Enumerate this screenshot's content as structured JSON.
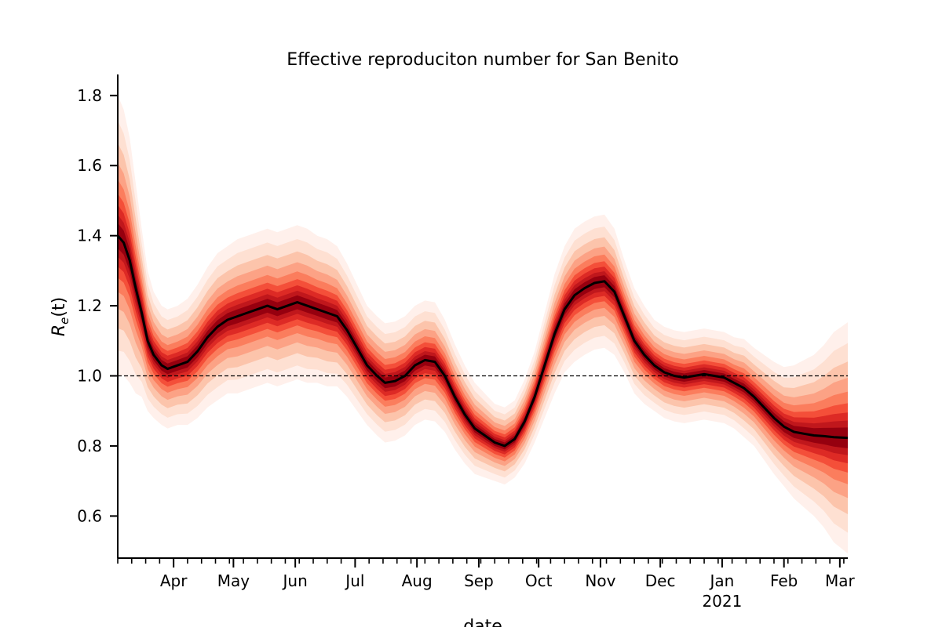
{
  "chart_data": {
    "type": "line",
    "title": "Effective reproduciton number for San Benito",
    "xlabel": "date",
    "ylabel_base": "R",
    "ylabel_sub": "e",
    "ylabel_arg": "(t)",
    "ylim": [
      0.48,
      1.86
    ],
    "xlim": [
      "2020-03-04",
      "2021-03-05"
    ],
    "y_ticks": [
      0.6,
      0.8,
      1.0,
      1.2,
      1.4,
      1.6,
      1.8
    ],
    "y_tick_labels": [
      "0.6",
      "0.8",
      "1.0",
      "1.2",
      "1.4",
      "1.6",
      "1.8"
    ],
    "x_major_ticks": [
      {
        "date": "2020-04-01",
        "label": "Apr",
        "label2": ""
      },
      {
        "date": "2020-05-01",
        "label": "May",
        "label2": ""
      },
      {
        "date": "2020-06-01",
        "label": "Jun",
        "label2": ""
      },
      {
        "date": "2020-07-01",
        "label": "Jul",
        "label2": ""
      },
      {
        "date": "2020-08-01",
        "label": "Aug",
        "label2": ""
      },
      {
        "date": "2020-09-01",
        "label": "Sep",
        "label2": ""
      },
      {
        "date": "2020-10-01",
        "label": "Oct",
        "label2": ""
      },
      {
        "date": "2020-11-01",
        "label": "Nov",
        "label2": ""
      },
      {
        "date": "2020-12-01",
        "label": "Dec",
        "label2": ""
      },
      {
        "date": "2021-01-01",
        "label": "Jan",
        "label2": "2021"
      },
      {
        "date": "2021-02-01",
        "label": "Feb",
        "label2": ""
      },
      {
        "date": "2021-03-01",
        "label": "Mar",
        "label2": ""
      }
    ],
    "minor_tick_interval": "weekly",
    "reference_line": {
      "y": 1.0,
      "style": "dashed"
    },
    "series": [
      {
        "color": "#000000",
        "x": [
          "2020-03-04",
          "2020-03-07",
          "2020-03-10",
          "2020-03-13",
          "2020-03-16",
          "2020-03-19",
          "2020-03-22",
          "2020-03-26",
          "2020-03-29",
          "2020-04-03",
          "2020-04-08",
          "2020-04-13",
          "2020-04-18",
          "2020-04-23",
          "2020-04-28",
          "2020-05-03",
          "2020-05-08",
          "2020-05-13",
          "2020-05-18",
          "2020-05-23",
          "2020-05-28",
          "2020-06-02",
          "2020-06-07",
          "2020-06-12",
          "2020-06-17",
          "2020-06-22",
          "2020-06-27",
          "2020-07-02",
          "2020-07-07",
          "2020-07-12",
          "2020-07-16",
          "2020-07-21",
          "2020-07-26",
          "2020-07-31",
          "2020-08-05",
          "2020-08-10",
          "2020-08-15",
          "2020-08-20",
          "2020-08-25",
          "2020-08-30",
          "2020-09-04",
          "2020-09-09",
          "2020-09-14",
          "2020-09-19",
          "2020-09-24",
          "2020-09-29",
          "2020-10-04",
          "2020-10-09",
          "2020-10-14",
          "2020-10-19",
          "2020-10-24",
          "2020-10-29",
          "2020-11-03",
          "2020-11-08",
          "2020-11-13",
          "2020-11-18",
          "2020-11-23",
          "2020-11-28",
          "2020-12-03",
          "2020-12-08",
          "2020-12-13",
          "2020-12-18",
          "2020-12-23",
          "2020-12-28",
          "2021-01-02",
          "2021-01-07",
          "2021-01-12",
          "2021-01-17",
          "2021-01-22",
          "2021-01-27",
          "2021-02-01",
          "2021-02-06",
          "2021-02-11",
          "2021-02-16",
          "2021-02-21",
          "2021-02-26",
          "2021-03-05"
        ],
        "y": [
          1.4,
          1.38,
          1.33,
          1.25,
          1.18,
          1.1,
          1.06,
          1.03,
          1.02,
          1.03,
          1.04,
          1.07,
          1.11,
          1.14,
          1.16,
          1.17,
          1.18,
          1.19,
          1.2,
          1.19,
          1.2,
          1.21,
          1.2,
          1.19,
          1.18,
          1.17,
          1.13,
          1.08,
          1.03,
          1.0,
          0.98,
          0.985,
          1.0,
          1.03,
          1.045,
          1.04,
          1.0,
          0.94,
          0.89,
          0.85,
          0.83,
          0.81,
          0.8,
          0.82,
          0.87,
          0.94,
          1.03,
          1.12,
          1.19,
          1.23,
          1.25,
          1.265,
          1.27,
          1.24,
          1.17,
          1.1,
          1.06,
          1.03,
          1.01,
          1.0,
          0.995,
          1.0,
          1.005,
          1.0,
          0.995,
          0.98,
          0.965,
          0.94,
          0.91,
          0.88,
          0.855,
          0.84,
          0.835,
          0.83,
          0.828,
          0.825,
          0.823
        ],
        "band_spread": [
          0.4,
          0.38,
          0.35,
          0.3,
          0.24,
          0.2,
          0.18,
          0.17,
          0.17,
          0.17,
          0.18,
          0.19,
          0.2,
          0.21,
          0.21,
          0.22,
          0.22,
          0.22,
          0.22,
          0.22,
          0.22,
          0.22,
          0.22,
          0.21,
          0.21,
          0.2,
          0.19,
          0.18,
          0.17,
          0.17,
          0.17,
          0.17,
          0.17,
          0.17,
          0.17,
          0.17,
          0.16,
          0.15,
          0.14,
          0.13,
          0.12,
          0.11,
          0.11,
          0.11,
          0.12,
          0.13,
          0.15,
          0.17,
          0.18,
          0.19,
          0.19,
          0.19,
          0.19,
          0.18,
          0.16,
          0.15,
          0.14,
          0.13,
          0.13,
          0.13,
          0.13,
          0.13,
          0.13,
          0.13,
          0.13,
          0.13,
          0.14,
          0.14,
          0.15,
          0.16,
          0.17,
          0.19,
          0.21,
          0.23,
          0.26,
          0.3,
          0.33
        ]
      }
    ]
  }
}
